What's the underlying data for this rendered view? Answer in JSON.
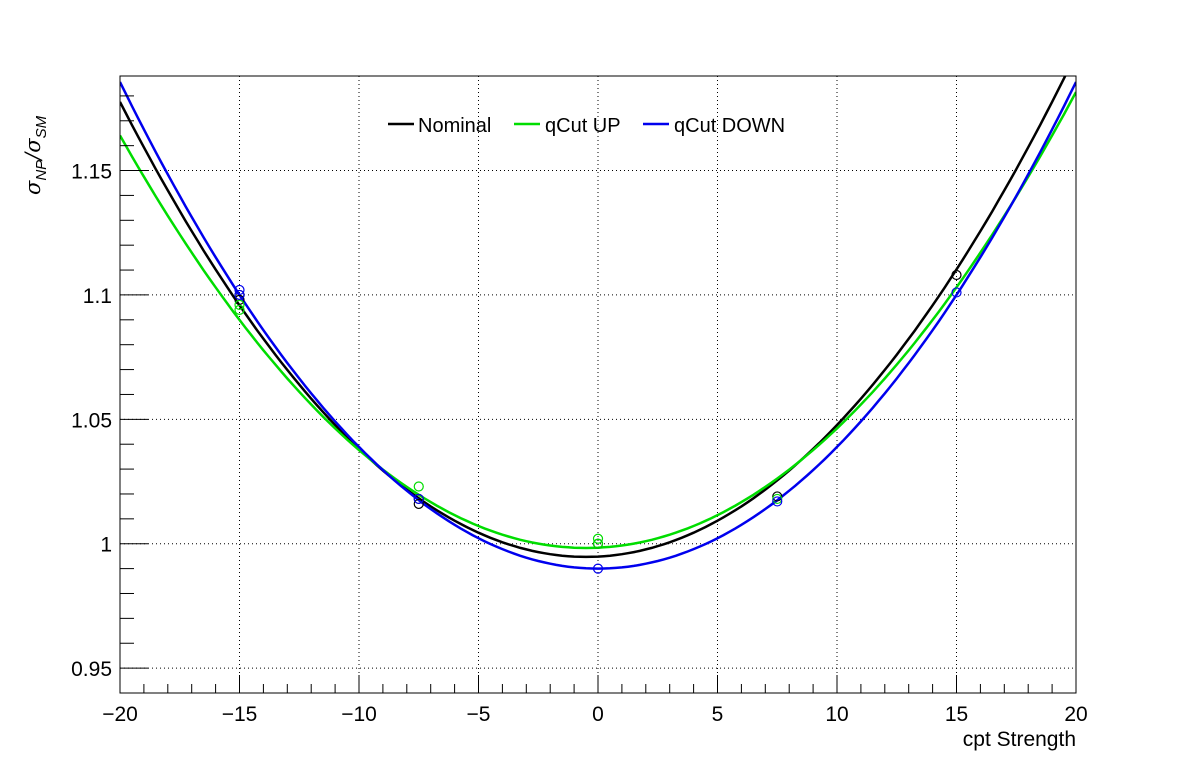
{
  "chart_data": {
    "type": "line",
    "title": "",
    "xlabel": "cpt Strength",
    "ylabel": {
      "main": "σ",
      "sub1": "NP",
      "slash": "/σ",
      "sub2": "SM"
    },
    "xlim": [
      -20,
      20
    ],
    "ylim": [
      0.94,
      1.188
    ],
    "x_ticks": [
      -20,
      -15,
      -10,
      -5,
      0,
      5,
      10,
      15,
      20
    ],
    "x_tick_labels": [
      "−20",
      "−15",
      "−10",
      "−5",
      "0",
      "5",
      "10",
      "15",
      "20"
    ],
    "y_ticks": [
      0.95,
      1.0,
      1.05,
      1.1,
      1.15
    ],
    "y_tick_labels": [
      "0.95",
      "1",
      "1.05",
      "1.1",
      "1.15"
    ],
    "grid": true,
    "legend_position": "top-center",
    "series": [
      {
        "name": "Nominal",
        "color": "#000000",
        "fit": {
          "vertex_x": -0.5,
          "vertex_y": 0.9947,
          "a": 0.000481
        },
        "points": [
          [
            -15,
            1.098
          ],
          [
            -15,
            1.1
          ],
          [
            -7.5,
            1.016
          ],
          [
            -7.5,
            1.018
          ],
          [
            0,
            1.0
          ],
          [
            7.5,
            1.019
          ],
          [
            15,
            1.108
          ]
        ]
      },
      {
        "name": "qCut UP",
        "color": "#00dd00",
        "fit": {
          "vertex_x": -0.5,
          "vertex_y": 0.9983,
          "a": 0.000436
        },
        "points": [
          [
            -15,
            1.094
          ],
          [
            -15,
            1.096
          ],
          [
            -7.5,
            1.023
          ],
          [
            0,
            1.002
          ],
          [
            0,
            1.0
          ],
          [
            7.5,
            1.018
          ]
        ]
      },
      {
        "name": "qCut DOWN",
        "color": "#0000ee",
        "fit": {
          "vertex_x": 0,
          "vertex_y": 0.99,
          "a": 0.000489
        },
        "points": [
          [
            -15,
            1.102
          ],
          [
            -15,
            1.1
          ],
          [
            -7.5,
            1.018
          ],
          [
            0,
            0.99
          ],
          [
            7.5,
            1.017
          ],
          [
            15,
            1.101
          ]
        ]
      }
    ]
  }
}
